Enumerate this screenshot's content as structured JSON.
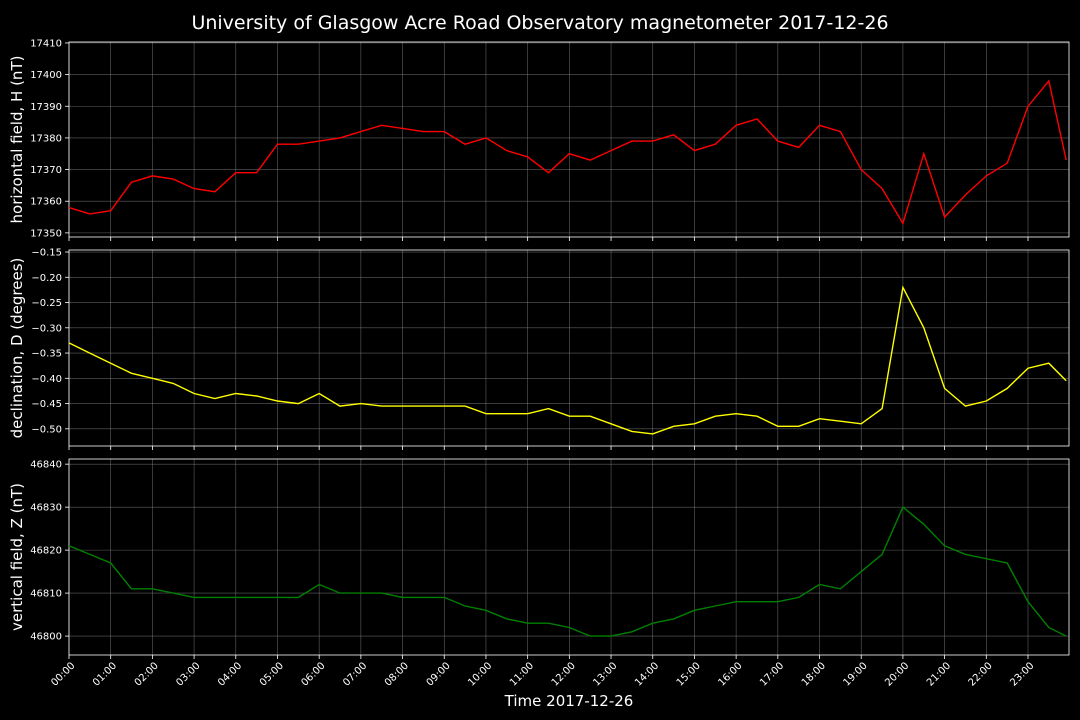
{
  "chart_data": [
    {
      "type": "line",
      "title": "University of Glasgow Acre Road Observatory magnetometer 2017-12-26",
      "ylabel": "horizontal field, H (nT)",
      "color": "#ff0000",
      "grid": true,
      "x": [
        "00:00",
        "00:30",
        "01:00",
        "01:30",
        "02:00",
        "02:30",
        "03:00",
        "03:30",
        "04:00",
        "04:30",
        "05:00",
        "05:30",
        "06:00",
        "06:30",
        "07:00",
        "07:30",
        "08:00",
        "08:30",
        "09:00",
        "09:30",
        "10:00",
        "10:30",
        "11:00",
        "11:30",
        "12:00",
        "12:30",
        "13:00",
        "13:30",
        "14:00",
        "14:30",
        "15:00",
        "15:30",
        "16:00",
        "16:30",
        "17:00",
        "17:30",
        "18:00",
        "18:30",
        "19:00",
        "19:30",
        "20:00",
        "20:30",
        "21:00",
        "21:30",
        "22:00",
        "22:30",
        "23:00",
        "23:30",
        "23:55"
      ],
      "values": [
        17358,
        17356,
        17357,
        17366,
        17368,
        17367,
        17364,
        17363,
        17369,
        17369,
        17378,
        17378,
        17379,
        17380,
        17382,
        17384,
        17383,
        17382,
        17382,
        17378,
        17380,
        17376,
        17374,
        17369,
        17375,
        17373,
        17376,
        17379,
        17379,
        17381,
        17376,
        17378,
        17384,
        17386,
        17379,
        17377,
        17384,
        17382,
        17370,
        17364,
        17353,
        17375,
        17355,
        17362,
        17368,
        17372,
        17390,
        17398,
        17373
      ],
      "xlim": [
        "00:00",
        "23:59"
      ],
      "xticks": [
        "00:00",
        "01:00",
        "02:00",
        "03:00",
        "04:00",
        "05:00",
        "06:00",
        "07:00",
        "08:00",
        "09:00",
        "10:00",
        "11:00",
        "12:00",
        "13:00",
        "14:00",
        "15:00",
        "16:00",
        "17:00",
        "18:00",
        "19:00",
        "20:00",
        "21:00",
        "22:00",
        "23:00"
      ],
      "ylim": [
        17348.7,
        17410.3
      ],
      "yticks": [
        17350,
        17360,
        17370,
        17380,
        17390,
        17400,
        17410
      ]
    },
    {
      "type": "line",
      "ylabel": "declination, D (degrees)",
      "color": "#ffff00",
      "grid": true,
      "x": [
        "00:00",
        "00:30",
        "01:00",
        "01:30",
        "02:00",
        "02:30",
        "03:00",
        "03:30",
        "04:00",
        "04:30",
        "05:00",
        "05:30",
        "06:00",
        "06:30",
        "07:00",
        "07:30",
        "08:00",
        "08:30",
        "09:00",
        "09:30",
        "10:00",
        "10:30",
        "11:00",
        "11:30",
        "12:00",
        "12:30",
        "13:00",
        "13:30",
        "14:00",
        "14:30",
        "15:00",
        "15:30",
        "16:00",
        "16:30",
        "17:00",
        "17:30",
        "18:00",
        "18:30",
        "19:00",
        "19:30",
        "20:00",
        "20:30",
        "21:00",
        "21:30",
        "22:00",
        "22:30",
        "23:00",
        "23:30",
        "23:55"
      ],
      "values": [
        -0.33,
        -0.35,
        -0.37,
        -0.39,
        -0.4,
        -0.41,
        -0.43,
        -0.44,
        -0.43,
        -0.435,
        -0.445,
        -0.45,
        -0.43,
        -0.455,
        -0.45,
        -0.455,
        -0.455,
        -0.455,
        -0.455,
        -0.455,
        -0.47,
        -0.47,
        -0.47,
        -0.46,
        -0.475,
        -0.475,
        -0.49,
        -0.505,
        -0.51,
        -0.495,
        -0.49,
        -0.475,
        -0.47,
        -0.475,
        -0.495,
        -0.495,
        -0.48,
        -0.485,
        -0.49,
        -0.46,
        -0.22,
        -0.3,
        -0.42,
        -0.455,
        -0.445,
        -0.42,
        -0.38,
        -0.37,
        -0.405
      ],
      "xlim": [
        "00:00",
        "23:59"
      ],
      "xticks": [
        "00:00",
        "01:00",
        "02:00",
        "03:00",
        "04:00",
        "05:00",
        "06:00",
        "07:00",
        "08:00",
        "09:00",
        "10:00",
        "11:00",
        "12:00",
        "13:00",
        "14:00",
        "15:00",
        "16:00",
        "17:00",
        "18:00",
        "19:00",
        "20:00",
        "21:00",
        "22:00",
        "23:00"
      ],
      "ylim": [
        -0.534,
        -0.146
      ],
      "yticks": [
        {
          "value": -0.5,
          "label": "−0.50"
        },
        {
          "value": -0.45,
          "label": "−0.45"
        },
        {
          "value": -0.4,
          "label": "−0.40"
        },
        {
          "value": -0.35,
          "label": "−0.35"
        },
        {
          "value": -0.3,
          "label": "−0.30"
        },
        {
          "value": -0.25,
          "label": "−0.25"
        },
        {
          "value": -0.2,
          "label": "−0.20"
        },
        {
          "value": -0.15,
          "label": "−0.15"
        }
      ]
    },
    {
      "type": "line",
      "ylabel": "vertical field, Z (nT)",
      "xlabel": "Time 2017-12-26",
      "color": "#008000",
      "grid": true,
      "x": [
        "00:00",
        "00:30",
        "01:00",
        "01:30",
        "02:00",
        "02:30",
        "03:00",
        "03:30",
        "04:00",
        "04:30",
        "05:00",
        "05:30",
        "06:00",
        "06:30",
        "07:00",
        "07:30",
        "08:00",
        "08:30",
        "09:00",
        "09:30",
        "10:00",
        "10:30",
        "11:00",
        "11:30",
        "12:00",
        "12:30",
        "13:00",
        "13:30",
        "14:00",
        "14:30",
        "15:00",
        "15:30",
        "16:00",
        "16:30",
        "17:00",
        "17:30",
        "18:00",
        "18:30",
        "19:00",
        "19:30",
        "20:00",
        "20:30",
        "21:00",
        "21:30",
        "22:00",
        "22:30",
        "23:00",
        "23:30",
        "23:55"
      ],
      "values": [
        46821,
        46819,
        46817,
        46811,
        46811,
        46810,
        46809,
        46809,
        46809,
        46809,
        46809,
        46809,
        46812,
        46810,
        46810,
        46810,
        46809,
        46809,
        46809,
        46807,
        46806,
        46804,
        46803,
        46803,
        46802,
        46800,
        46800,
        46801,
        46803,
        46804,
        46806,
        46807,
        46808,
        46808,
        46808,
        46809,
        46812,
        46811,
        46815,
        46819,
        46830,
        46826,
        46821,
        46819,
        46818,
        46817,
        46808,
        46802,
        46800
      ],
      "xlim": [
        "00:00",
        "23:59"
      ],
      "xticks": [
        "00:00",
        "01:00",
        "02:00",
        "03:00",
        "04:00",
        "05:00",
        "06:00",
        "07:00",
        "08:00",
        "09:00",
        "10:00",
        "11:00",
        "12:00",
        "13:00",
        "14:00",
        "15:00",
        "16:00",
        "17:00",
        "18:00",
        "19:00",
        "20:00",
        "21:00",
        "22:00",
        "23:00"
      ],
      "ylim": [
        46795.6,
        46841.2
      ],
      "yticks": [
        46800,
        46810,
        46820,
        46830,
        46840
      ]
    }
  ]
}
